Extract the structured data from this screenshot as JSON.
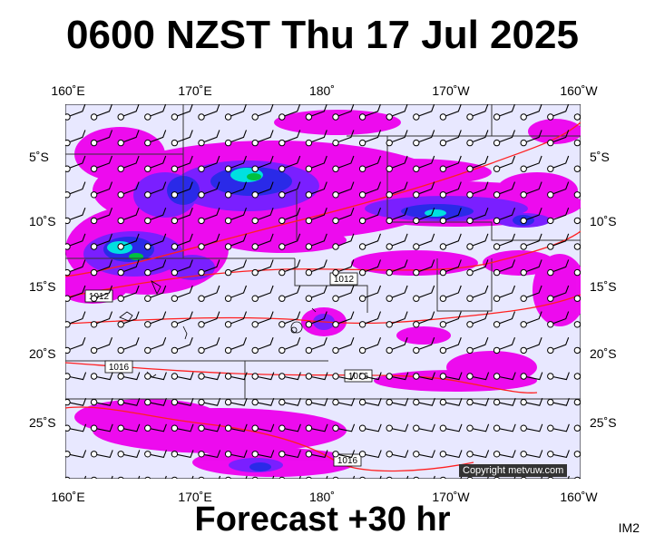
{
  "title": "0600 NZST Thu 17 Jul 2025",
  "subtitle": "Forecast +30 hr",
  "map_code": "IM2",
  "copyright": "Copyright metvuw.com",
  "axes": {
    "lon_labels": [
      "160˚E",
      "170˚E",
      "180˚",
      "170˚W",
      "160˚W"
    ],
    "lat_labels": [
      "5˚S",
      "10˚S",
      "15˚S",
      "20˚S",
      "25˚S"
    ]
  },
  "isobar_labels": [
    "1012",
    "1012",
    "1016",
    "1016",
    "1016"
  ],
  "colors": {
    "background": "#e8e8ff",
    "precip_light": "#ee00ee",
    "precip_mid": "#7a1fff",
    "precip_heavy": "#2a2ae8",
    "precip_peak": "#00e0e0",
    "precip_extreme": "#00c040",
    "isobar": "#ff2020",
    "boundaries": "#333333"
  }
}
